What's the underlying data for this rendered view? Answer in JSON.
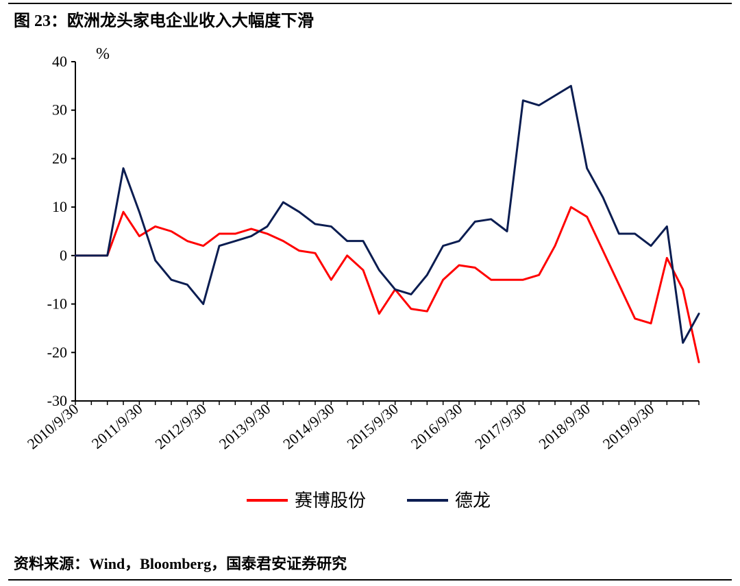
{
  "title": "图 23：欧洲龙头家电企业收入大幅度下滑",
  "source": "资料来源：Wind，Bloomberg，国泰君安证券研究",
  "chart": {
    "type": "line",
    "unit_label": "%",
    "background_color": "#ffffff",
    "axis_color": "#000000",
    "line_width": 3,
    "ylim": [
      -30,
      40
    ],
    "ytick_step": 10,
    "yticks": [
      -30,
      -20,
      -10,
      0,
      10,
      20,
      30,
      40
    ],
    "x_labels": [
      "2010/9/30",
      "2011/9/30",
      "2012/9/30",
      "2013/9/30",
      "2014/9/30",
      "2015/9/30",
      "2016/9/30",
      "2017/9/30",
      "2018/9/30",
      "2019/9/30"
    ],
    "x_label_indices": [
      0,
      4,
      8,
      12,
      16,
      20,
      24,
      28,
      32,
      36
    ],
    "x_count": 40,
    "series": [
      {
        "name": "赛博股份",
        "color": "#ff0000",
        "values": [
          0,
          0,
          0,
          9,
          4,
          6,
          5,
          3,
          2,
          4.5,
          4.5,
          5.5,
          4.5,
          3,
          1,
          0.5,
          -5,
          0,
          -3,
          -12,
          -7,
          -11,
          -11.5,
          -5,
          -2,
          -2.5,
          -5,
          -5,
          -5,
          -4,
          2,
          10,
          8,
          1,
          -6,
          -13,
          -14,
          -0.5,
          -7,
          -22
        ]
      },
      {
        "name": "德龙",
        "color": "#0b1d51",
        "values": [
          0,
          0,
          0,
          18,
          9,
          -1,
          -5,
          -6,
          -10,
          2,
          3,
          4,
          6,
          11,
          9,
          6.5,
          6,
          3,
          3,
          -3,
          -7,
          -8,
          -4,
          2,
          3,
          7,
          7.5,
          5,
          32,
          31,
          33,
          35,
          18,
          12,
          4.5,
          4.5,
          2,
          6,
          -18,
          -12
        ]
      }
    ],
    "legend": {
      "position": "bottom-center"
    },
    "axis_fontsize": 22,
    "legend_fontsize": 26
  }
}
